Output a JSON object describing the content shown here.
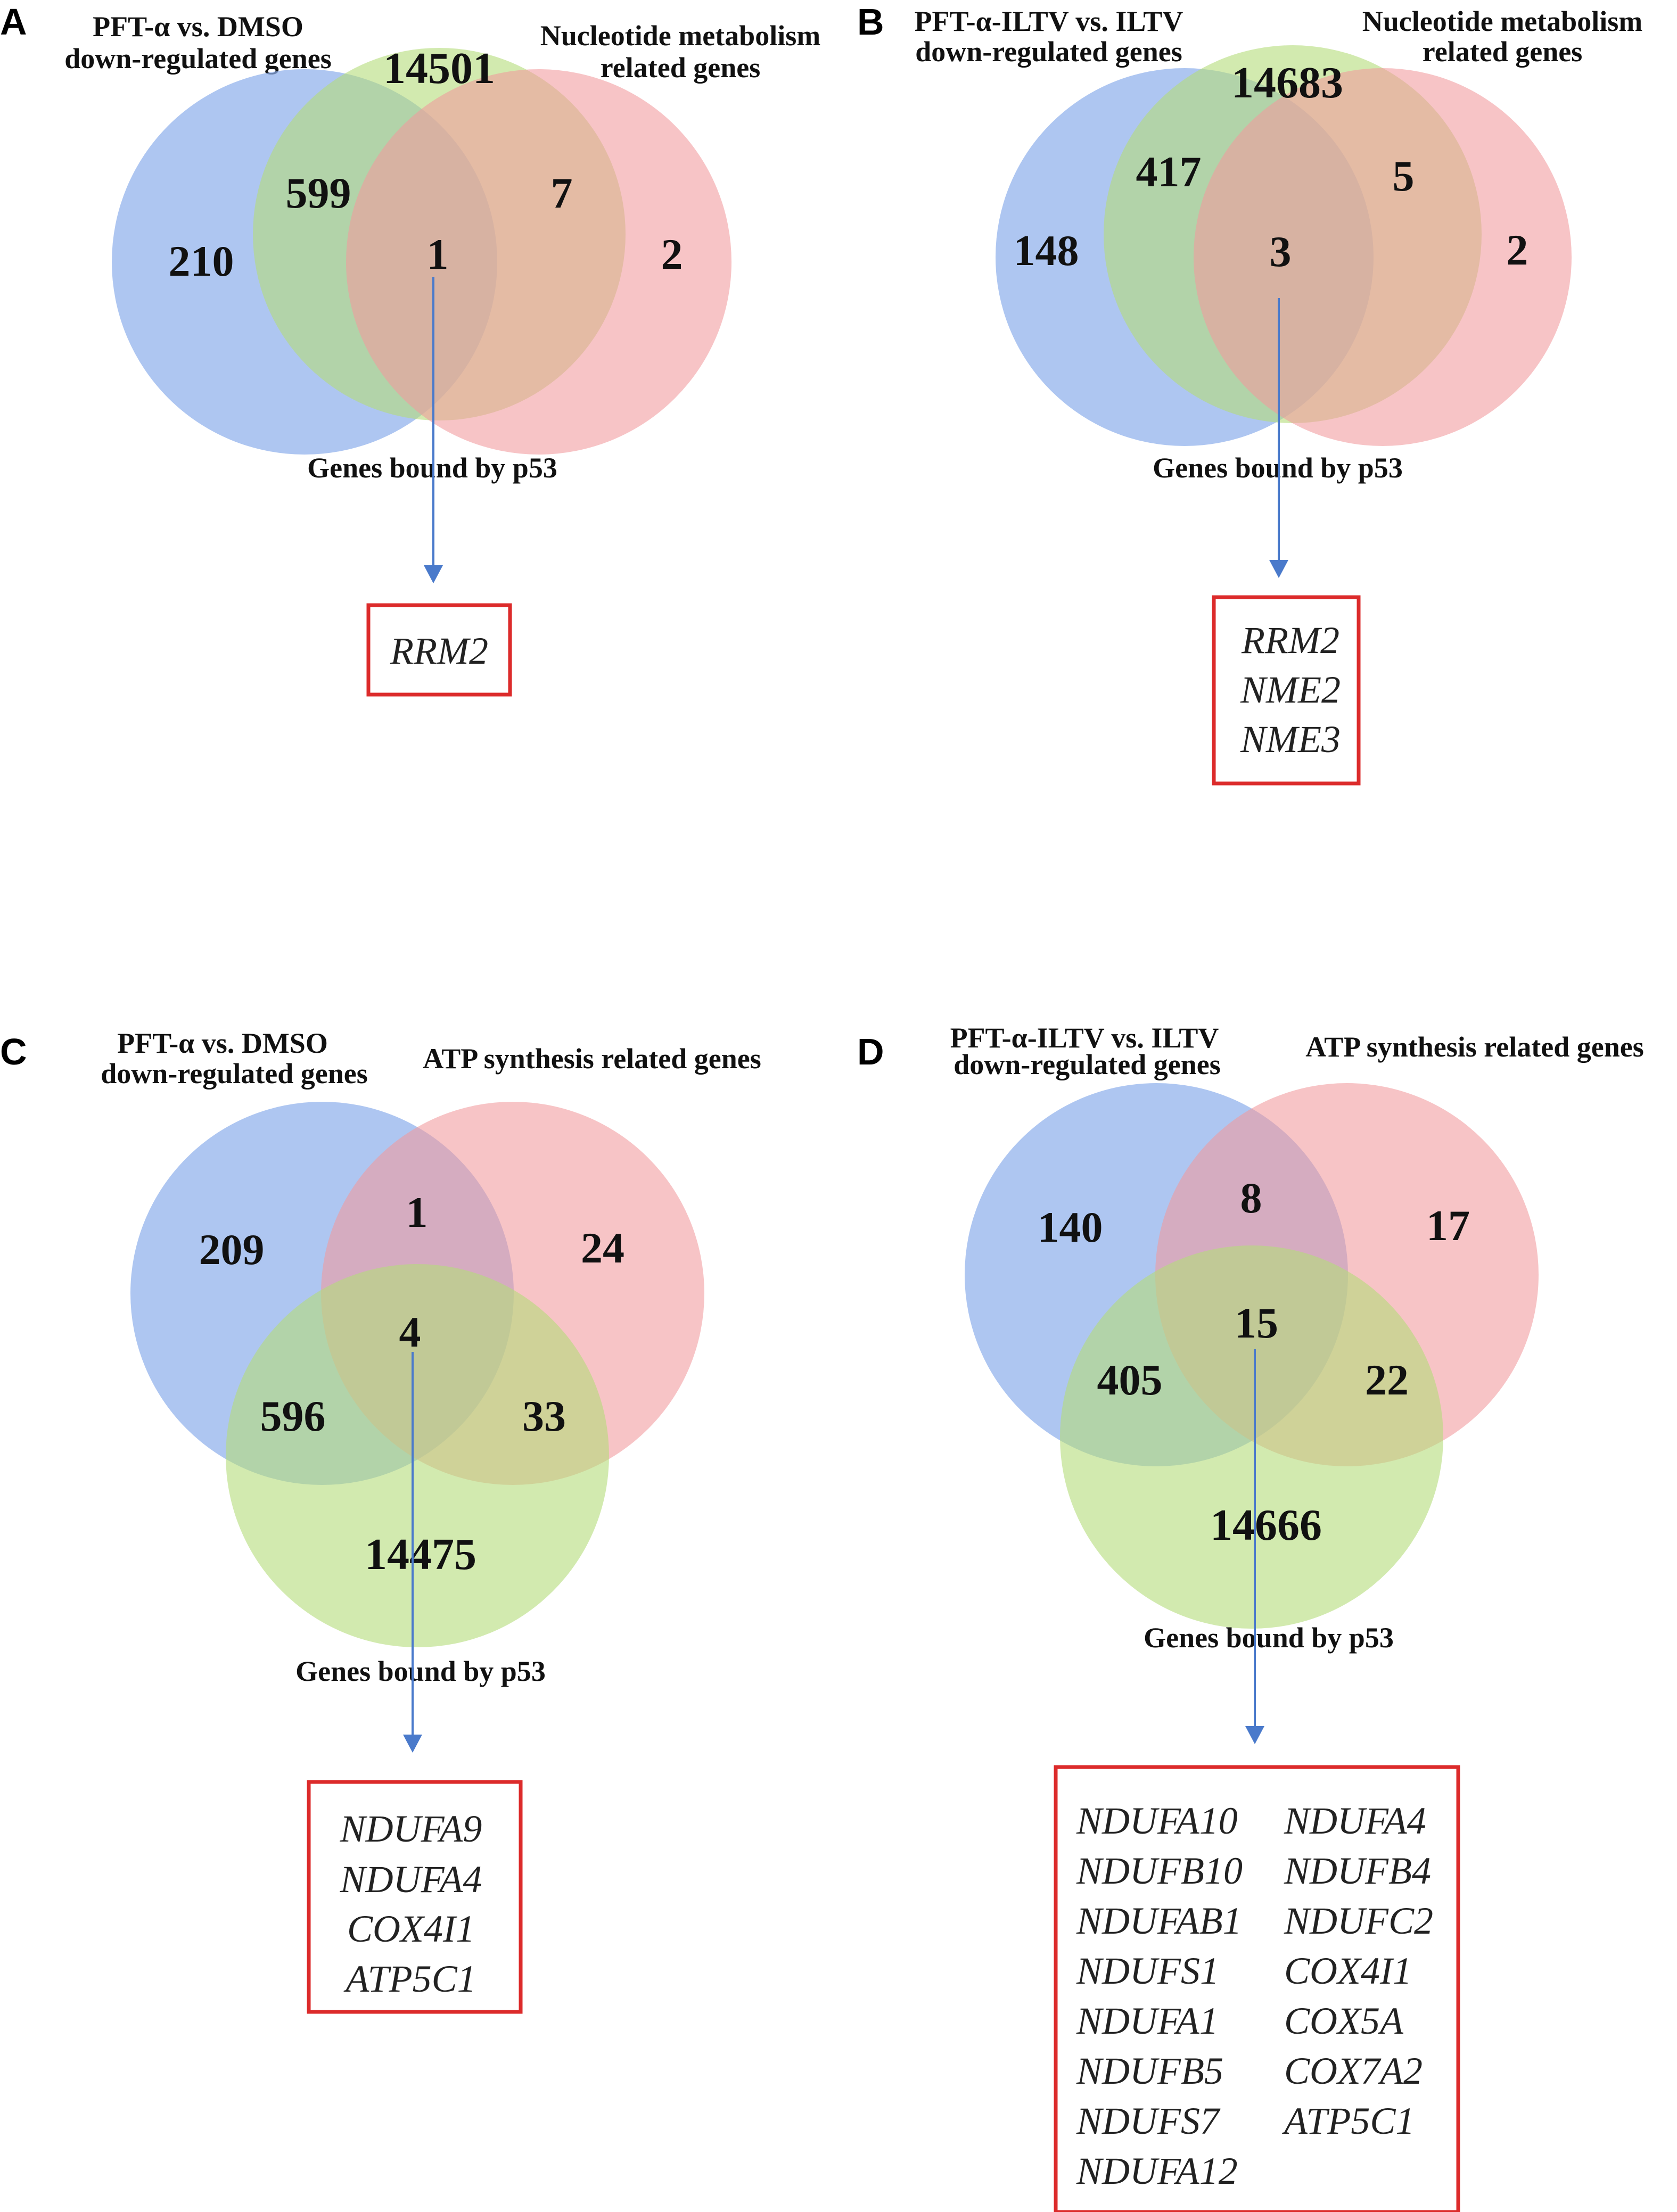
{
  "colors": {
    "blue": "#8fb0ec",
    "green": "#b4dc7a",
    "red": "#f29a9c",
    "arrow": "#4a7acb",
    "box": "#dc2b2b"
  },
  "panels": [
    {
      "letter": "A",
      "set_labels": [
        "PFT-α vs. DMSO",
        "down-regulated genes",
        "Nucleotide metabolism",
        "related genes",
        "Genes bound by p53"
      ],
      "counts": {
        "only_a": "210",
        "ab": "599",
        "only_b": "14501",
        "abc": "1",
        "bc": "7",
        "only_c": "2"
      },
      "genes": [
        "RRM2"
      ]
    },
    {
      "letter": "B",
      "set_labels": [
        "PFT-α-ILTV vs. ILTV",
        "down-regulated genes",
        "Nucleotide metabolism",
        "related genes",
        "Genes bound by p53"
      ],
      "counts": {
        "only_a": "148",
        "ab": "417",
        "only_b": "14683",
        "abc": "3",
        "bc": "5",
        "only_c": "2"
      },
      "genes": [
        "RRM2",
        "NME2",
        "NME3"
      ]
    },
    {
      "letter": "C",
      "set_labels": [
        "PFT-α vs. DMSO",
        "down-regulated genes",
        "ATP synthesis related genes",
        "Genes bound by p53"
      ],
      "counts": {
        "only_a": "209",
        "ab": "1",
        "only_b": "24",
        "abc": "4",
        "ac": "596",
        "bc": "33",
        "only_c": "14475"
      },
      "genes": [
        "NDUFA9",
        "NDUFA4",
        "COX4I1",
        "ATP5C1"
      ]
    },
    {
      "letter": "D",
      "set_labels": [
        "PFT-α-ILTV vs. ILTV",
        "down-regulated genes",
        "ATP synthesis related genes",
        "Genes bound by p53"
      ],
      "counts": {
        "only_a": "140",
        "ab": "8",
        "only_b": "17",
        "abc": "15",
        "ac": "405",
        "bc": "22",
        "only_c": "14666"
      },
      "genes": [
        "NDUFA10",
        "NDUFB10",
        "NDUFAB1",
        "NDUFS1",
        "NDUFA1",
        "NDUFB5",
        "NDUFS7",
        "NDUFA12",
        "NDUFA4",
        "NDUFB4",
        "NDUFC2",
        "COX4I1",
        "COX5A",
        "COX7A2",
        "ATP5C1"
      ]
    }
  ]
}
